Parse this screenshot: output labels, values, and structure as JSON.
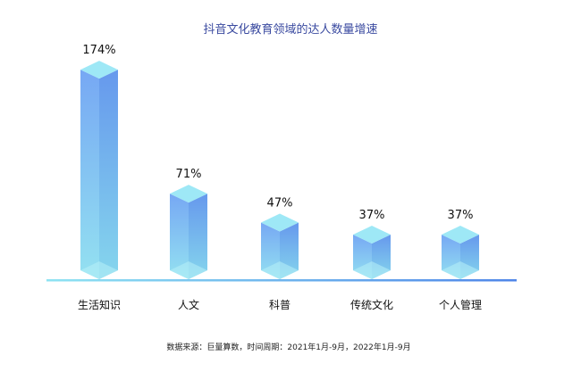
{
  "chart_data": {
    "type": "bar",
    "title": "抖音文化教育领域的达人数量增速",
    "categories": [
      "生活知识",
      "人文",
      "科普",
      "传统文化",
      "个人管理"
    ],
    "values": [
      174,
      71,
      47,
      37,
      37
    ],
    "value_labels": [
      "174%",
      "71%",
      "47%",
      "37%",
      "37%"
    ],
    "unit": "%",
    "xlabel": "",
    "ylabel": "",
    "grid": false,
    "legend": "none",
    "source": "数据来源：巨量算数，时间周期：2021年1月-9月，2022年1月-9月"
  },
  "colors": {
    "title": "#3a4aa0",
    "bar_top": "#6fa3f3",
    "bar_bottom": "#8ee0f0",
    "cap": "#9ee8f6",
    "baseline_left": "#8fe3f2",
    "baseline_right": "#4f86e8"
  }
}
